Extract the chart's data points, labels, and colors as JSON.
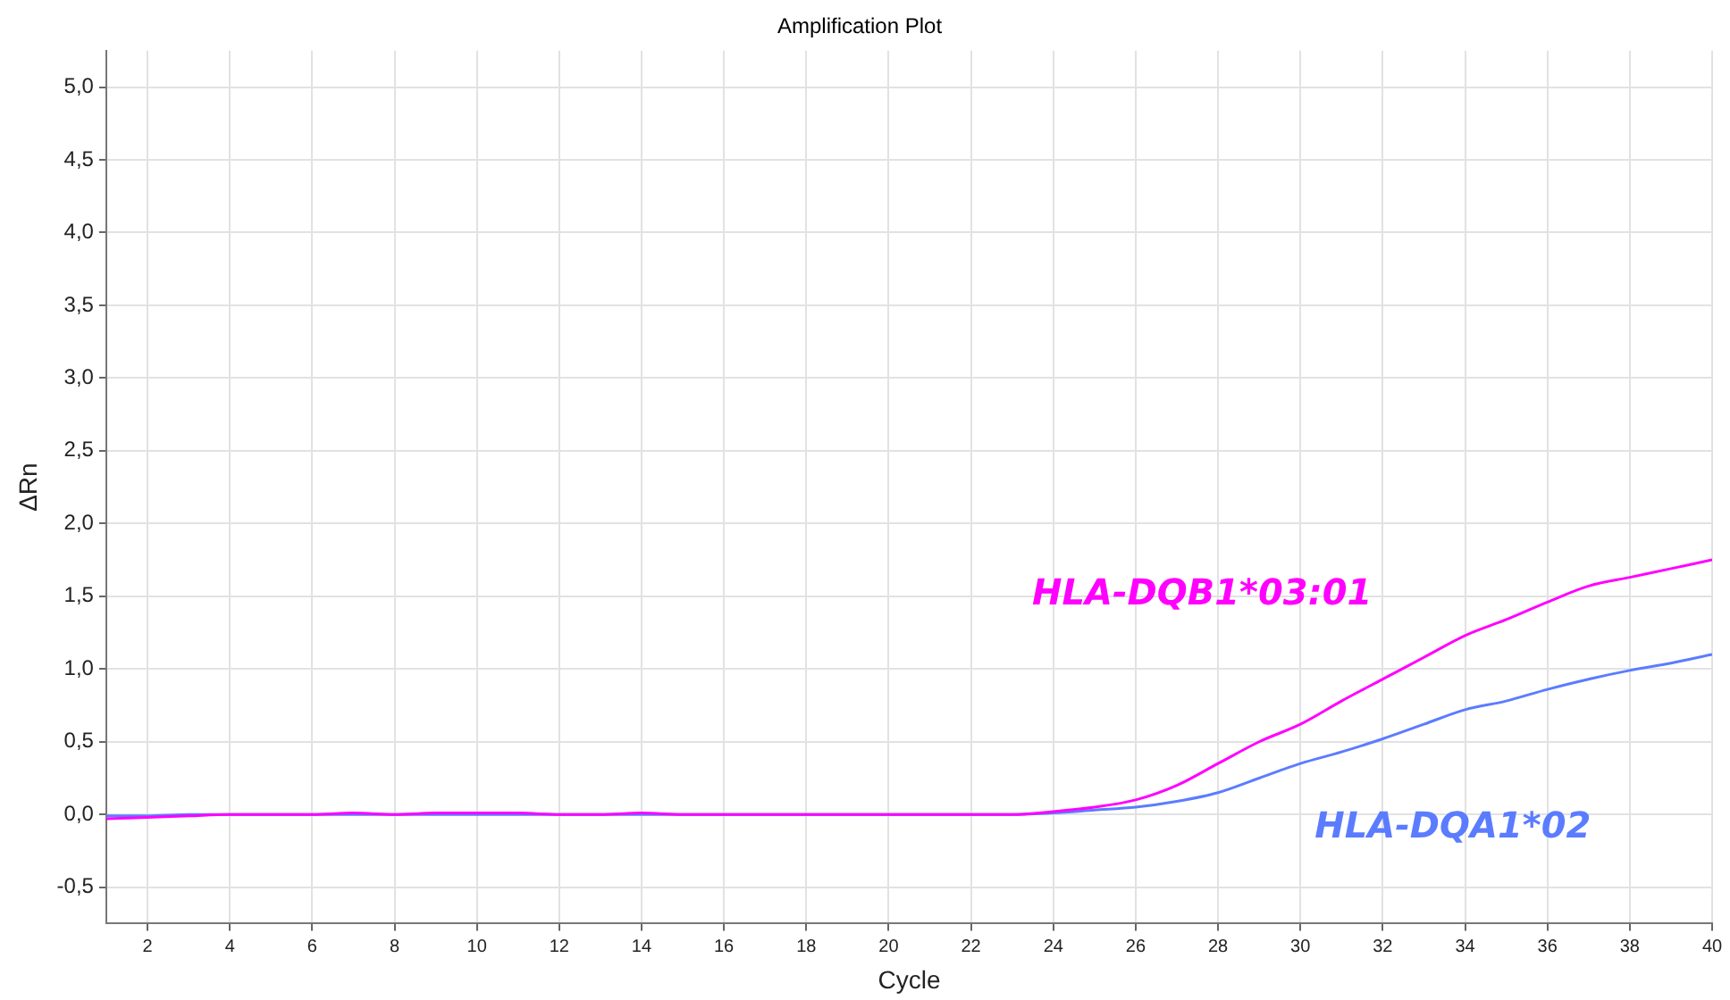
{
  "chart_data": {
    "type": "line",
    "title": "Amplification Plot",
    "xlabel": "Cycle",
    "ylabel": "ΔRn",
    "x": [
      1,
      2,
      3,
      4,
      5,
      6,
      7,
      8,
      9,
      10,
      11,
      12,
      13,
      14,
      15,
      16,
      17,
      18,
      19,
      20,
      21,
      22,
      23,
      24,
      25,
      26,
      27,
      28,
      29,
      30,
      31,
      32,
      33,
      34,
      35,
      36,
      37,
      38,
      39,
      40
    ],
    "series": [
      {
        "name": "HLA-DQB1*03:01",
        "color": "#ff00ff",
        "values": [
          -0.03,
          -0.02,
          -0.01,
          0,
          0,
          0,
          0.01,
          0,
          0.01,
          0.01,
          0.01,
          0,
          0,
          0.01,
          0,
          0,
          0,
          0,
          0,
          0,
          0,
          0,
          0,
          0.02,
          0.05,
          0.1,
          0.2,
          0.35,
          0.5,
          0.62,
          0.78,
          0.93,
          1.08,
          1.23,
          1.34,
          1.46,
          1.57,
          1.63,
          1.69,
          1.75
        ]
      },
      {
        "name": "HLA-DQA1*02",
        "color": "#5b7cff",
        "values": [
          -0.01,
          -0.01,
          0,
          0,
          0,
          0,
          0,
          0,
          0,
          0,
          0,
          0,
          0,
          0,
          0,
          0,
          0,
          0,
          0,
          0,
          0,
          0,
          0,
          0.01,
          0.03,
          0.05,
          0.09,
          0.15,
          0.25,
          0.35,
          0.43,
          0.52,
          0.62,
          0.72,
          0.78,
          0.86,
          0.93,
          0.99,
          1.04,
          1.1
        ]
      }
    ],
    "xlim": [
      1,
      40
    ],
    "xticks": [
      2,
      4,
      6,
      8,
      10,
      12,
      14,
      16,
      18,
      20,
      22,
      24,
      26,
      28,
      30,
      32,
      34,
      36,
      38,
      40
    ],
    "ylim": [
      -0.75,
      5.25
    ],
    "yticks": [
      {
        "value": -0.5,
        "label": "-0,5"
      },
      {
        "value": 0,
        "label": "0,0"
      },
      {
        "value": 0.5,
        "label": "0,5"
      },
      {
        "value": 1,
        "label": "1,0"
      },
      {
        "value": 1.5,
        "label": "1,5"
      },
      {
        "value": 2,
        "label": "2,0"
      },
      {
        "value": 2.5,
        "label": "2,5"
      },
      {
        "value": 3,
        "label": "3,0"
      },
      {
        "value": 3.5,
        "label": "3,5"
      },
      {
        "value": 4,
        "label": "4,0"
      },
      {
        "value": 4.5,
        "label": "4,5"
      },
      {
        "value": 5,
        "label": "5,0"
      }
    ],
    "grid": true,
    "marker": "none",
    "line_style": "solid",
    "legend": false
  }
}
